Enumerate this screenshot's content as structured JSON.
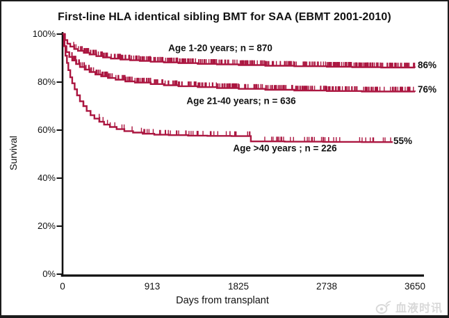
{
  "page": {
    "title": "First-line HLA identical sibling BMT for SAA (EBMT 2001-2010)"
  },
  "chart_data": {
    "type": "line",
    "subtype": "kaplan-meier-step-survival",
    "title": "First-line HLA identical sibling BMT for SAA (EBMT 2001-2010)",
    "xlabel": "Days from transplant",
    "ylabel": "Survival",
    "xlim": [
      0,
      3650
    ],
    "ylim": [
      0,
      100
    ],
    "grid": false,
    "legend_position": "inline-annotations",
    "x_ticks": [
      0,
      913,
      1825,
      2738,
      3650
    ],
    "x_tick_labels": [
      "0",
      "913",
      "1825",
      "2738",
      "3650"
    ],
    "y_ticks_pct": [
      100,
      80,
      60,
      40,
      20,
      0
    ],
    "y_tick_labels": [
      "100%",
      "80%",
      "60%",
      "40%",
      "20%",
      "0%"
    ],
    "curve_color": "#AB1640",
    "axis_color": "#111111",
    "series": [
      {
        "name": "Age 1-20 years",
        "n": 870,
        "label": "Age 1-20 years; n = 870",
        "final_value_pct": 86,
        "final_label": "86%",
        "points": [
          [
            0,
            100
          ],
          [
            25,
            97.5
          ],
          [
            50,
            96
          ],
          [
            80,
            94.8
          ],
          [
            120,
            93.8
          ],
          [
            160,
            93
          ],
          [
            220,
            92.2
          ],
          [
            280,
            91.5
          ],
          [
            350,
            90.8
          ],
          [
            420,
            90.3
          ],
          [
            500,
            89.8
          ],
          [
            600,
            89.4
          ],
          [
            700,
            89.1
          ],
          [
            800,
            88.8
          ],
          [
            913,
            88.5
          ],
          [
            1050,
            88.2
          ],
          [
            1200,
            87.9
          ],
          [
            1400,
            87.6
          ],
          [
            1600,
            87.4
          ],
          [
            1825,
            87.1
          ],
          [
            2100,
            86.8
          ],
          [
            2400,
            86.6
          ],
          [
            2738,
            86.4
          ],
          [
            3000,
            86.2
          ],
          [
            3300,
            86.1
          ],
          [
            3650,
            86
          ]
        ],
        "censor": {
          "from": 110,
          "to": 3650,
          "count": 400,
          "seed": 11
        }
      },
      {
        "name": "Age 21-40 years",
        "n": 636,
        "label": "Age 21-40 years; n = 636",
        "final_value_pct": 76,
        "final_label": "76%",
        "points": [
          [
            0,
            100
          ],
          [
            20,
            95
          ],
          [
            40,
            92.5
          ],
          [
            70,
            90.5
          ],
          [
            100,
            89
          ],
          [
            140,
            87.5
          ],
          [
            180,
            86.3
          ],
          [
            230,
            85.2
          ],
          [
            280,
            84.2
          ],
          [
            340,
            83.2
          ],
          [
            400,
            82.4
          ],
          [
            470,
            81.7
          ],
          [
            550,
            81
          ],
          [
            650,
            80.3
          ],
          [
            750,
            79.8
          ],
          [
            913,
            79.2
          ],
          [
            1050,
            78.7
          ],
          [
            1200,
            78.3
          ],
          [
            1400,
            77.9
          ],
          [
            1600,
            77.5
          ],
          [
            1825,
            77.2
          ],
          [
            2100,
            76.8
          ],
          [
            2400,
            76.5
          ],
          [
            2738,
            76.3
          ],
          [
            3100,
            76.1
          ],
          [
            3650,
            76
          ]
        ],
        "censor": {
          "from": 90,
          "to": 3650,
          "count": 310,
          "seed": 23
        }
      },
      {
        "name": "Age >40 years",
        "n": 226,
        "label": "Age >40 years ; n = 226",
        "final_value_pct": 55,
        "final_label": "55%",
        "points": [
          [
            0,
            100
          ],
          [
            15,
            95
          ],
          [
            30,
            91
          ],
          [
            45,
            88
          ],
          [
            60,
            85
          ],
          [
            80,
            82
          ],
          [
            100,
            79.5
          ],
          [
            125,
            77
          ],
          [
            150,
            74.5
          ],
          [
            180,
            72
          ],
          [
            215,
            70
          ],
          [
            250,
            68
          ],
          [
            290,
            66.2
          ],
          [
            330,
            64.8
          ],
          [
            380,
            63.5
          ],
          [
            430,
            62.3
          ],
          [
            490,
            61.3
          ],
          [
            560,
            60.4
          ],
          [
            640,
            59.6
          ],
          [
            730,
            59
          ],
          [
            830,
            58.5
          ],
          [
            950,
            58.1
          ],
          [
            1100,
            57.9
          ],
          [
            1300,
            57.7
          ],
          [
            1500,
            57.6
          ],
          [
            1750,
            57.5
          ],
          [
            1950,
            55.3
          ],
          [
            2300,
            55.2
          ],
          [
            2700,
            55.1
          ],
          [
            3100,
            55
          ],
          [
            3420,
            55
          ]
        ],
        "censor": {
          "from": 160,
          "to": 3400,
          "count": 85,
          "seed": 37
        }
      }
    ]
  },
  "watermark": {
    "icon": "weibo-eye-icon",
    "text": "血液时讯"
  }
}
